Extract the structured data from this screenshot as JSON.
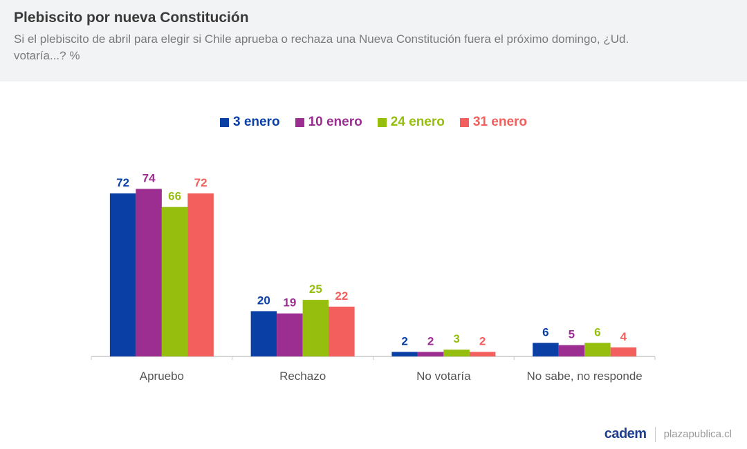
{
  "header": {
    "title": "Plebiscito por nueva Constitución",
    "subtitle": "Si el plebiscito de abril para elegir si Chile aprueba o rechaza una Nueva Constitución fuera el próximo domingo, ¿Ud. votaría...? %"
  },
  "chart_data": {
    "type": "bar",
    "categories": [
      "Apruebo",
      "Rechazo",
      "No votaría",
      "No sabe, no responde"
    ],
    "series": [
      {
        "name": "3 enero",
        "color": "#0a3fa6",
        "values": [
          72,
          20,
          2,
          6
        ]
      },
      {
        "name": "10 enero",
        "color": "#9c2e91",
        "values": [
          74,
          19,
          2,
          5
        ]
      },
      {
        "name": "24 enero",
        "color": "#96be0e",
        "values": [
          66,
          25,
          3,
          6
        ]
      },
      {
        "name": "31 enero",
        "color": "#f25f5c",
        "values": [
          72,
          22,
          2,
          4
        ]
      }
    ],
    "ylim": [
      0,
      80
    ],
    "grid": false,
    "legend_position": "top",
    "data_labels": true
  },
  "footer": {
    "logo": "cadem",
    "site": "plazapublica.cl"
  }
}
